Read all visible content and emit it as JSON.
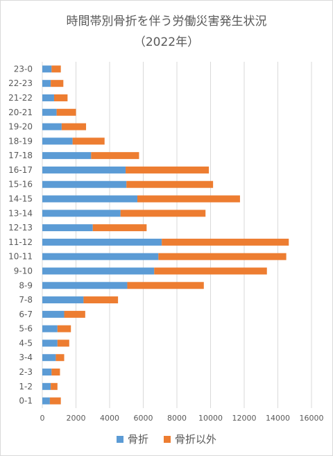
{
  "colors": {
    "series1": "#5b9bd5",
    "series2": "#ed7d31",
    "grid": "#d9d9d9",
    "text": "#595959"
  },
  "chart_data": {
    "type": "bar",
    "orientation": "horizontal",
    "stacked": true,
    "title": "時間帯別骨折を伴う労働災害発生状況",
    "subtitle": "（2022年）",
    "xlabel": "",
    "ylabel": "",
    "xlim": [
      0,
      16000
    ],
    "xticks": [
      0,
      2000,
      4000,
      6000,
      8000,
      10000,
      12000,
      14000,
      16000
    ],
    "grid": true,
    "legend_position": "bottom",
    "categories": [
      "23-0",
      "22-23",
      "21-22",
      "20-21",
      "19-20",
      "18-19",
      "17-18",
      "16-17",
      "15-16",
      "14-15",
      "13-14",
      "12-13",
      "11-12",
      "10-11",
      "9-10",
      "8-9",
      "7-8",
      "6-7",
      "5-6",
      "4-5",
      "3-4",
      "2-3",
      "1-2",
      "0-1"
    ],
    "series": [
      {
        "name": "骨折",
        "values": [
          550,
          500,
          700,
          850,
          1150,
          1800,
          2900,
          4950,
          5000,
          5650,
          4650,
          3000,
          7100,
          6900,
          6650,
          5050,
          2450,
          1300,
          900,
          900,
          800,
          550,
          500,
          450
        ]
      },
      {
        "name": "骨折以外",
        "values": [
          550,
          750,
          800,
          1150,
          1450,
          1900,
          2850,
          4950,
          5150,
          6100,
          5050,
          3200,
          7550,
          7600,
          6700,
          4550,
          2050,
          1250,
          800,
          700,
          500,
          500,
          400,
          650
        ]
      }
    ]
  }
}
